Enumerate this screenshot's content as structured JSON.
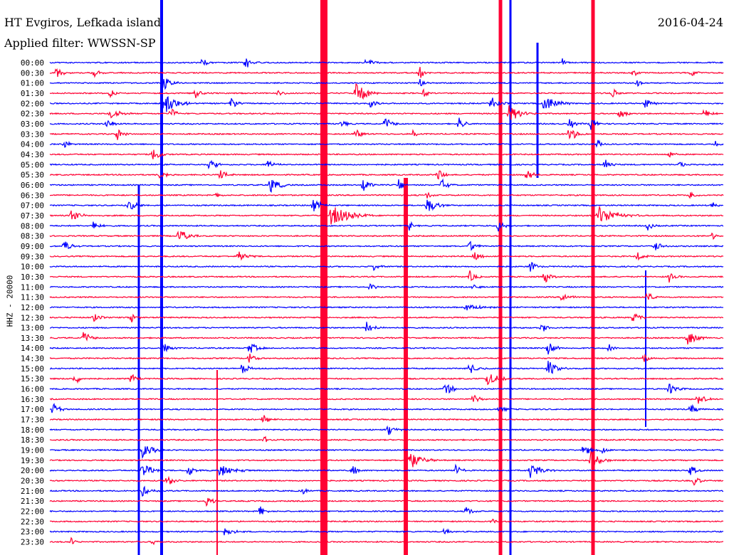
{
  "header": {
    "title": "HT Evgiros, Lefkada island",
    "filter": "Applied filter: WWSSN-SP",
    "date": "2016-04-24"
  },
  "axis": {
    "ylabel": "HHZ - 20000"
  },
  "chart_data": {
    "type": "line",
    "title": "HT Evgiros, Lefkada island",
    "subtitle": "Applied filter: WWSSN-SP",
    "ylabel": "HHZ - 20000",
    "date": "2016-04-24",
    "row_labels": [
      "00:00",
      "00:30",
      "01:00",
      "01:30",
      "02:00",
      "02:30",
      "03:00",
      "03:30",
      "04:00",
      "04:30",
      "05:00",
      "05:30",
      "06:00",
      "06:30",
      "07:00",
      "07:30",
      "08:00",
      "08:30",
      "09:00",
      "09:30",
      "10:00",
      "10:30",
      "11:00",
      "11:30",
      "12:00",
      "12:30",
      "13:00",
      "13:30",
      "14:00",
      "14:30",
      "15:00",
      "15:30",
      "16:00",
      "16:30",
      "17:00",
      "17:30",
      "18:00",
      "18:30",
      "19:00",
      "19:30",
      "20:00",
      "20:30",
      "21:00",
      "21:30",
      "22:00",
      "22:30",
      "23:00",
      "23:30"
    ],
    "trace_colors": [
      "#0000ff",
      "#ff0033"
    ],
    "minutes_per_row": 30,
    "grid": false,
    "legend": "none"
  }
}
